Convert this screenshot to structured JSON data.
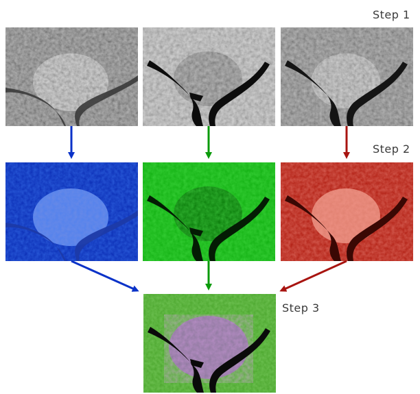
{
  "steps": {
    "step1": "Step 1",
    "step2": "Step 2",
    "step3": "Step 3"
  },
  "colors": {
    "blue": "#0a32c8",
    "green": "#0a9a0a",
    "red": "#a81410",
    "land_gray": "#8a8a8a",
    "water": "#0c0c0c",
    "composite_magenta": "#b04ad0",
    "composite_green": "#4aa52c"
  },
  "panels": {
    "gray_bands": [
      "gray-band-1",
      "gray-band-2",
      "gray-band-3"
    ],
    "colored_bands": [
      "blue-band",
      "green-band",
      "red-band"
    ],
    "composite": "false-color-composite"
  }
}
